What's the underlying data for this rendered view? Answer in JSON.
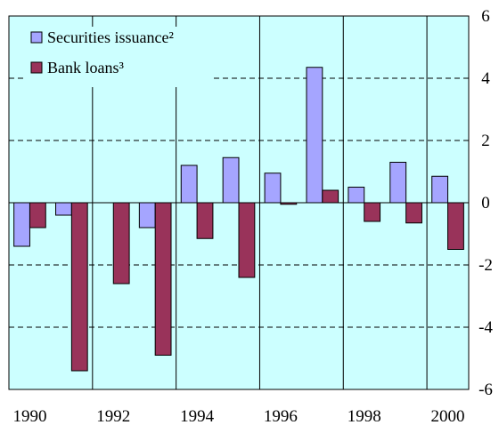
{
  "chart_data": {
    "type": "bar",
    "title": "",
    "xlabel": "",
    "ylabel": "",
    "ylim": [
      -6,
      6
    ],
    "y_ticks": [
      6,
      4,
      2,
      0,
      -2,
      -4,
      -6
    ],
    "y_tick_labels": [
      "6",
      "4",
      "2",
      "0",
      "-2",
      "-4",
      "-6"
    ],
    "x_tick_labels": [
      "1990",
      "1992",
      "1994",
      "1996",
      "1998",
      "2000"
    ],
    "categories": [
      "1990",
      "1991",
      "1992",
      "1993",
      "1994",
      "1995",
      "1996",
      "1997",
      "1998",
      "1999",
      "2000"
    ],
    "series": [
      {
        "name": "Securities issuance²",
        "color": "#a5a5ff",
        "values": [
          -1.4,
          -0.4,
          null,
          -0.8,
          1.2,
          1.45,
          0.95,
          4.35,
          0.5,
          1.3,
          0.85
        ]
      },
      {
        "name": "Bank loans³",
        "color": "#99335a",
        "values": [
          -0.8,
          -5.4,
          -2.6,
          -4.9,
          -1.15,
          -2.4,
          -0.05,
          0.4,
          -0.6,
          -0.65,
          -1.5
        ]
      }
    ],
    "grid": "dashed horizontal",
    "legend_position": "top-left",
    "background_color": "#ccffff"
  }
}
